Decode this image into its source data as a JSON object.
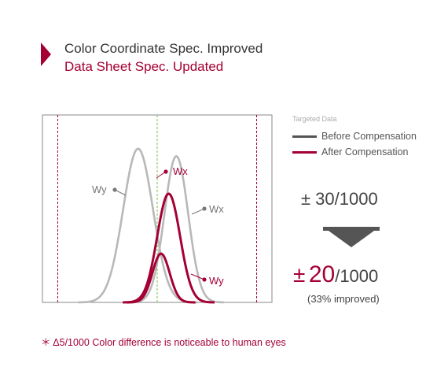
{
  "header": {
    "title": "Color Coordinate Spec. Improved",
    "subtitle": "Data Sheet Spec. Updated"
  },
  "legend": {
    "title": "Targeted Data",
    "items": [
      {
        "label": "Before Compensation",
        "color": "#555555"
      },
      {
        "label": "After Compensation",
        "color": "#a50034"
      }
    ]
  },
  "specs": {
    "before": "± 30/1000",
    "after_pm": "±",
    "after_num": "20",
    "after_den": "/1000",
    "improved": "(33% improved)"
  },
  "footnote": "＊ Δ5/1000 Color difference is noticeable to human eyes",
  "chart_data": {
    "type": "line",
    "x_range": [
      -6,
      6
    ],
    "y_range": [
      0,
      1
    ],
    "spec_limits": {
      "before": [
        -5.2,
        5.2
      ],
      "after": [
        -4.4,
        4.4
      ],
      "center": 0
    },
    "series": [
      {
        "label": "Wy",
        "group": "before",
        "mean": -1.0,
        "sd": 0.78,
        "peak": 0.82,
        "color": "#b8b8b8"
      },
      {
        "label": "Wx",
        "group": "before",
        "mean": 1.0,
        "sd": 0.62,
        "peak": 0.78,
        "color": "#b8b8b8"
      },
      {
        "label": "Wx",
        "group": "after",
        "mean": 0.6,
        "sd": 0.6,
        "peak": 0.58,
        "color": "#a50034"
      },
      {
        "label": "Wy",
        "group": "after",
        "mean": 0.2,
        "sd": 0.45,
        "peak": 0.26,
        "color": "#a50034"
      }
    ],
    "annotations": [
      {
        "text": "Wy",
        "group": "before"
      },
      {
        "text": "Wx",
        "group": "before"
      },
      {
        "text": "Wx",
        "group": "after"
      },
      {
        "text": "Wy",
        "group": "after"
      }
    ],
    "colors": {
      "frame": "#888888",
      "center_line": "#7dc242",
      "spec_line": "#a50034",
      "before_label": "#777777",
      "after_label": "#a50034"
    }
  }
}
